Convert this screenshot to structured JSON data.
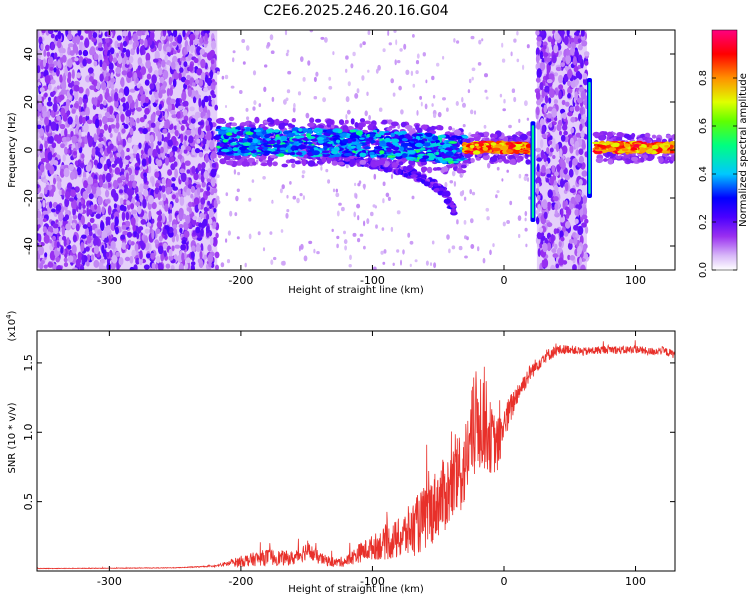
{
  "title": "C2E6.2025.246.20.16.G04",
  "chart_data": [
    {
      "type": "heatmap",
      "title": "C2E6.2025.246.20.16.G04",
      "xlabel": "Height of straight line (km)",
      "ylabel": "Frequency (Hz)",
      "xlim": [
        -355,
        130
      ],
      "ylim": [
        -50,
        50
      ],
      "xticks": [
        -300,
        -200,
        -100,
        0,
        100
      ],
      "xtick_labels": [
        "-300",
        "-200",
        "-100",
        "0",
        "100"
      ],
      "yticks": [
        -40,
        -20,
        0,
        20,
        40
      ],
      "ytick_labels": [
        "-40",
        "-20",
        "0",
        "20",
        "40"
      ],
      "colorbar": {
        "label": "Normalized spectral amplitude",
        "range": [
          0,
          1
        ],
        "ticks": [
          0.0,
          0.2,
          0.4,
          0.6,
          0.8
        ],
        "tick_labels": [
          "0.0",
          "0.2",
          "0.4",
          "0.6",
          "0.8"
        ],
        "colors": [
          "#ffffff",
          "#b478f0",
          "#7a00e6",
          "#0000ff",
          "#00c8ff",
          "#00ff80",
          "#c8ff00",
          "#ffa000",
          "#ff0000",
          "#ff0080"
        ]
      },
      "regions": [
        {
          "x": [
            -355,
            -218
          ],
          "y": [
            -50,
            50
          ],
          "kind": "broadband noise",
          "amplitude": 0.1
        },
        {
          "x": [
            -218,
            -30
          ],
          "y": [
            -3,
            8
          ],
          "kind": "main trace",
          "amplitude": 0.3
        },
        {
          "x": [
            -30,
            20
          ],
          "y": [
            -1,
            3
          ],
          "kind": "main trace",
          "amplitude": 0.85
        },
        {
          "x": [
            25,
            63
          ],
          "y": [
            -50,
            50
          ],
          "kind": "broadband noise",
          "amplitude": 0.1
        },
        {
          "x": [
            70,
            130
          ],
          "y": [
            -1,
            3
          ],
          "kind": "main trace",
          "amplitude": 0.9
        }
      ],
      "trace_center": [
        [
          -218,
          4
        ],
        [
          -180,
          3
        ],
        [
          -140,
          3
        ],
        [
          -100,
          3
        ],
        [
          -60,
          1
        ],
        [
          -40,
          0
        ],
        [
          -20,
          1
        ],
        [
          0,
          1
        ],
        [
          20,
          1
        ],
        [
          70,
          1
        ],
        [
          130,
          1
        ]
      ],
      "side_branch": [
        [
          -150,
          -1
        ],
        [
          -120,
          -4
        ],
        [
          -100,
          -6
        ],
        [
          -80,
          -8
        ],
        [
          -60,
          -12
        ],
        [
          -45,
          -18
        ],
        [
          -38,
          -25
        ]
      ],
      "vertical_spikes": [
        {
          "x": 22,
          "y": [
            -30,
            12
          ],
          "amplitude": 0.5
        },
        {
          "x": 65,
          "y": [
            -20,
            30
          ],
          "amplitude": 0.5
        }
      ]
    },
    {
      "type": "line",
      "xlabel": "Height of straight line (km)",
      "ylabel": "SNR (10 * v/v)",
      "y_multiplier": "(x10",
      "y_multiplier_exp": "4",
      "y_multiplier_close": ")",
      "xlim": [
        -355,
        130
      ],
      "ylim": [
        0,
        17300
      ],
      "xticks": [
        -300,
        -200,
        -100,
        0,
        100
      ],
      "xtick_labels": [
        "-300",
        "-200",
        "-100",
        "0",
        "100"
      ],
      "yticks": [
        5000,
        10000,
        15000
      ],
      "ytick_labels": [
        "0.5",
        "1.0",
        "1.5"
      ],
      "series": [
        {
          "color": "#e8302a",
          "x": [
            -355,
            -300,
            -250,
            -220,
            -200,
            -180,
            -160,
            -150,
            -140,
            -130,
            -120,
            -110,
            -100,
            -90,
            -80,
            -70,
            -60,
            -50,
            -40,
            -30,
            -25,
            -20,
            -15,
            -10,
            -5,
            0,
            10,
            20,
            30,
            40,
            50,
            60,
            70,
            80,
            90,
            100,
            110,
            120,
            130
          ],
          "y": [
            180,
            200,
            230,
            350,
            700,
            1000,
            900,
            1500,
            900,
            600,
            700,
            1300,
            1700,
            2000,
            2300,
            3000,
            3800,
            5000,
            6000,
            7500,
            9500,
            11000,
            11000,
            9500,
            9000,
            10500,
            12800,
            14300,
            15400,
            15900,
            16000,
            15800,
            15900,
            16000,
            15900,
            16000,
            15800,
            15900,
            15600
          ],
          "noise": [
            20,
            20,
            20,
            40,
            400,
            600,
            500,
            700,
            450,
            300,
            400,
            700,
            900,
            1200,
            1500,
            2000,
            2400,
            2600,
            2800,
            3000,
            3500,
            4000,
            3800,
            2500,
            2000,
            1400,
            800,
            600,
            500,
            400,
            300,
            300,
            300,
            300,
            300,
            300,
            300,
            300,
            300
          ]
        }
      ]
    }
  ]
}
